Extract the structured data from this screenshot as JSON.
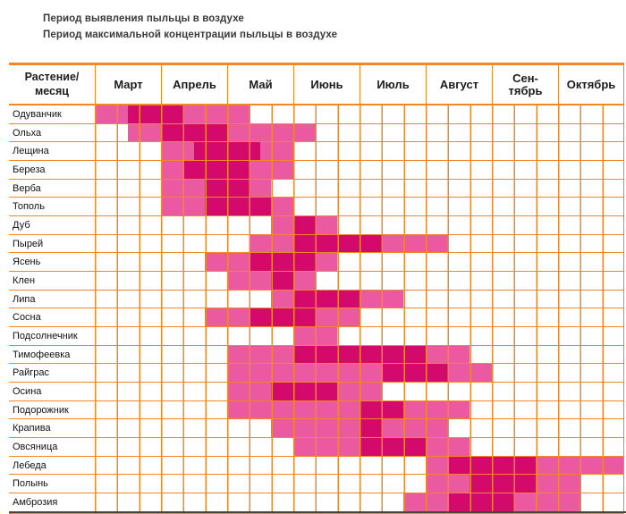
{
  "legend": {
    "items": [
      {
        "key": "det",
        "color": "#eb5aa0",
        "label": "Период выявления пыльцы в воздухе"
      },
      {
        "key": "max",
        "color": "#d3096b",
        "label": "Период максимальной концентрации пыльцы в воздухе"
      }
    ]
  },
  "colors": {
    "detection_pink": "#eb5aa0",
    "max_concentration_magenta": "#d3096b",
    "grid_orange": "#f0882a",
    "bottom_rule_gray": "#454545",
    "text_dark": "#1b1b1b"
  },
  "chart_data": {
    "type": "heatmap",
    "title": "",
    "corner_header": "Растение/\nмесяц",
    "months": [
      "Март",
      "Апрель",
      "Май",
      "Июнь",
      "Июль",
      "Август",
      "Сен-\nтябрь",
      "Октябрь"
    ],
    "unit_note": "segment start/end are in sixths of a month counted from March 1; 6 units = 1 month; full axis = 8 months = 48 units",
    "legend_mapping": {
      "det": "Период выявления пыльцы в воздухе",
      "max": "Период максимальной концентрации пыльцы в воздухе"
    },
    "rows": [
      {
        "plant": "Одуванчик",
        "segments": [
          {
            "s": 0,
            "e": 3,
            "t": "det"
          },
          {
            "s": 3,
            "e": 8,
            "t": "max"
          },
          {
            "s": 8,
            "e": 14,
            "t": "det"
          }
        ]
      },
      {
        "plant": "Ольха",
        "segments": [
          {
            "s": 3,
            "e": 6,
            "t": "det"
          },
          {
            "s": 6,
            "e": 12,
            "t": "max"
          },
          {
            "s": 12,
            "e": 20,
            "t": "det"
          }
        ]
      },
      {
        "plant": "Лещина",
        "segments": [
          {
            "s": 6,
            "e": 9,
            "t": "det"
          },
          {
            "s": 9,
            "e": 15,
            "t": "max"
          },
          {
            "s": 15,
            "e": 18,
            "t": "det"
          }
        ]
      },
      {
        "plant": "Береза",
        "segments": [
          {
            "s": 6,
            "e": 8,
            "t": "det"
          },
          {
            "s": 8,
            "e": 14,
            "t": "max"
          },
          {
            "s": 14,
            "e": 18,
            "t": "det"
          }
        ]
      },
      {
        "plant": "Верба",
        "segments": [
          {
            "s": 6,
            "e": 10,
            "t": "det"
          },
          {
            "s": 10,
            "e": 14,
            "t": "max"
          },
          {
            "s": 14,
            "e": 16,
            "t": "det"
          }
        ]
      },
      {
        "plant": "Тополь",
        "segments": [
          {
            "s": 6,
            "e": 10,
            "t": "det"
          },
          {
            "s": 10,
            "e": 16,
            "t": "max"
          },
          {
            "s": 16,
            "e": 18,
            "t": "det"
          }
        ]
      },
      {
        "plant": "Дуб",
        "segments": [
          {
            "s": 16,
            "e": 18,
            "t": "det"
          },
          {
            "s": 18,
            "e": 20,
            "t": "max"
          },
          {
            "s": 20,
            "e": 22,
            "t": "det"
          }
        ]
      },
      {
        "plant": "Пырей",
        "segments": [
          {
            "s": 14,
            "e": 18,
            "t": "det"
          },
          {
            "s": 18,
            "e": 26,
            "t": "max"
          },
          {
            "s": 26,
            "e": 32,
            "t": "det"
          }
        ]
      },
      {
        "plant": "Ясень",
        "segments": [
          {
            "s": 10,
            "e": 14,
            "t": "det"
          },
          {
            "s": 14,
            "e": 20,
            "t": "max"
          },
          {
            "s": 20,
            "e": 22,
            "t": "det"
          }
        ]
      },
      {
        "plant": "Клен",
        "segments": [
          {
            "s": 12,
            "e": 16,
            "t": "det"
          },
          {
            "s": 16,
            "e": 18,
            "t": "max"
          },
          {
            "s": 18,
            "e": 20,
            "t": "det"
          }
        ]
      },
      {
        "plant": "Липа",
        "segments": [
          {
            "s": 16,
            "e": 18,
            "t": "det"
          },
          {
            "s": 18,
            "e": 24,
            "t": "max"
          },
          {
            "s": 24,
            "e": 28,
            "t": "det"
          }
        ]
      },
      {
        "plant": "Сосна",
        "segments": [
          {
            "s": 10,
            "e": 14,
            "t": "det"
          },
          {
            "s": 14,
            "e": 20,
            "t": "max"
          },
          {
            "s": 20,
            "e": 24,
            "t": "det"
          }
        ]
      },
      {
        "plant": "Подсолнечник",
        "segments": [
          {
            "s": 18,
            "e": 22,
            "t": "det"
          }
        ]
      },
      {
        "plant": "Тимофеевка",
        "segments": [
          {
            "s": 12,
            "e": 18,
            "t": "det"
          },
          {
            "s": 18,
            "e": 30,
            "t": "max"
          },
          {
            "s": 30,
            "e": 34,
            "t": "det"
          }
        ]
      },
      {
        "plant": "Райграс",
        "segments": [
          {
            "s": 12,
            "e": 26,
            "t": "det"
          },
          {
            "s": 26,
            "e": 32,
            "t": "max"
          },
          {
            "s": 32,
            "e": 36,
            "t": "det"
          }
        ]
      },
      {
        "plant": "Осина",
        "segments": [
          {
            "s": 12,
            "e": 16,
            "t": "det"
          },
          {
            "s": 16,
            "e": 22,
            "t": "max"
          },
          {
            "s": 22,
            "e": 26,
            "t": "det"
          }
        ]
      },
      {
        "plant": "Подорожник",
        "segments": [
          {
            "s": 12,
            "e": 24,
            "t": "det"
          },
          {
            "s": 24,
            "e": 28,
            "t": "max"
          },
          {
            "s": 28,
            "e": 34,
            "t": "det"
          }
        ]
      },
      {
        "plant": "Крапива",
        "segments": [
          {
            "s": 16,
            "e": 24,
            "t": "det"
          },
          {
            "s": 24,
            "e": 26,
            "t": "max"
          },
          {
            "s": 26,
            "e": 32,
            "t": "det"
          }
        ]
      },
      {
        "plant": "Овсяница",
        "segments": [
          {
            "s": 18,
            "e": 24,
            "t": "det"
          },
          {
            "s": 24,
            "e": 30,
            "t": "max"
          },
          {
            "s": 30,
            "e": 34,
            "t": "det"
          }
        ]
      },
      {
        "plant": "Лебеда",
        "segments": [
          {
            "s": 30,
            "e": 32,
            "t": "det"
          },
          {
            "s": 32,
            "e": 40,
            "t": "max"
          },
          {
            "s": 40,
            "e": 48,
            "t": "det"
          }
        ]
      },
      {
        "plant": "Полынь",
        "segments": [
          {
            "s": 30,
            "e": 34,
            "t": "det"
          },
          {
            "s": 34,
            "e": 40,
            "t": "max"
          },
          {
            "s": 40,
            "e": 44,
            "t": "det"
          }
        ]
      },
      {
        "plant": "Амброзия",
        "segments": [
          {
            "s": 28,
            "e": 32,
            "t": "det"
          },
          {
            "s": 32,
            "e": 38,
            "t": "max"
          },
          {
            "s": 38,
            "e": 44,
            "t": "det"
          }
        ]
      }
    ]
  }
}
